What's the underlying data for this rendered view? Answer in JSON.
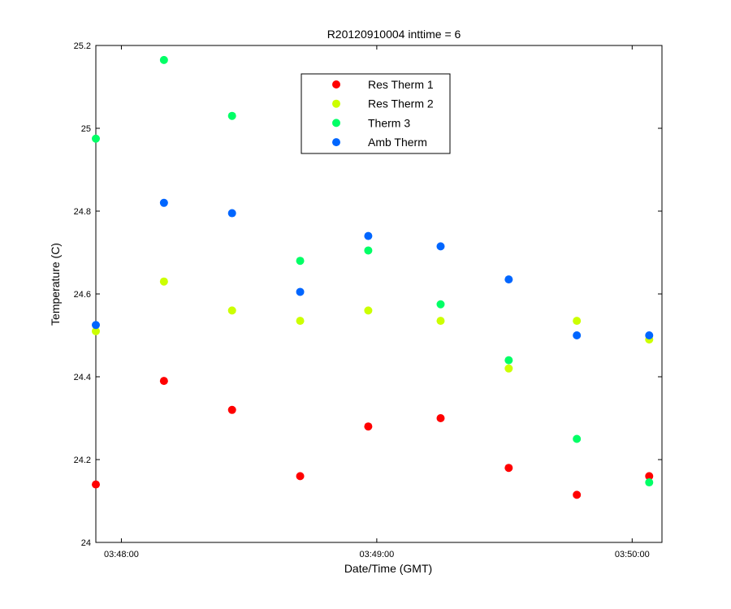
{
  "chart_data": {
    "type": "scatter",
    "title": "R20120910004 inttime = 6",
    "xlabel": "Date/Time (GMT)",
    "ylabel": "Temperature (C)",
    "x_ticks": [
      "03:48:00",
      "03:49:00",
      "03:50:00"
    ],
    "x_tick_values": [
      "03:48:00",
      "03:49:00",
      "03:50:00"
    ],
    "xlim": [
      "03:47:54",
      "03:50:07"
    ],
    "ylim": [
      24.0,
      25.2
    ],
    "y_ticks": [
      "24",
      "24.2",
      "24.4",
      "24.6",
      "24.8",
      "25",
      "25.2"
    ],
    "y_tick_values": [
      24.0,
      24.2,
      24.4,
      24.6,
      24.8,
      25.0,
      25.2
    ],
    "grid": false,
    "legend_position": "top-center",
    "x": [
      "03:47:54",
      "03:48:10",
      "03:48:26",
      "03:48:42",
      "03:48:58",
      "03:49:15",
      "03:49:31",
      "03:49:47",
      "03:50:04"
    ],
    "series": [
      {
        "name": "Res Therm 1",
        "color": "#ff0000",
        "values": [
          24.14,
          24.39,
          24.32,
          24.16,
          24.28,
          24.3,
          24.18,
          24.115,
          24.16
        ]
      },
      {
        "name": "Res Therm 2",
        "color": "#ccff00",
        "values": [
          24.51,
          24.63,
          24.56,
          24.535,
          24.56,
          24.535,
          24.42,
          24.535,
          24.49
        ]
      },
      {
        "name": "Therm 3",
        "color": "#00ff66",
        "values": [
          24.975,
          25.165,
          25.03,
          24.68,
          24.705,
          24.575,
          24.44,
          24.25,
          24.145
        ]
      },
      {
        "name": "Amb Therm",
        "color": "#0066ff",
        "values": [
          24.525,
          24.82,
          24.795,
          24.605,
          24.74,
          24.715,
          24.635,
          24.5,
          24.5
        ]
      }
    ]
  }
}
